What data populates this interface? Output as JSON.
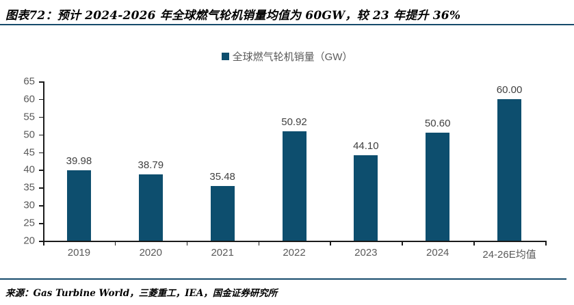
{
  "title": "图表72：预计 2024-2026 年全球燃气轮机销量均值为 60GW，较 23 年提升 36%",
  "source": "来源：Gas Turbine World，三菱重工，IEA，国金证券研究所",
  "colors": {
    "bar": "#0d4e6e",
    "rule": "#154a6b",
    "axis": "#1a1a1a",
    "tick_label": "#595959",
    "data_label": "#404040"
  },
  "chart_data": {
    "type": "bar",
    "title": "图表72：预计 2024-2026 年全球燃气轮机销量均值为 60GW，较 23 年提升 36%",
    "legend": "全球燃气轮机销量（GW）",
    "legend_position": "top-center",
    "categories": [
      "2019",
      "2020",
      "2021",
      "2022",
      "2023",
      "2024",
      "24-26E均值"
    ],
    "values": [
      39.98,
      38.79,
      35.48,
      50.92,
      44.1,
      50.6,
      60.0
    ],
    "value_labels": [
      "39.98",
      "38.79",
      "35.48",
      "50.92",
      "44.10",
      "50.60",
      "60.00"
    ],
    "xlabel": "",
    "ylabel": "",
    "ylim": [
      20,
      65
    ],
    "ytick_step": 5,
    "grid": false
  }
}
